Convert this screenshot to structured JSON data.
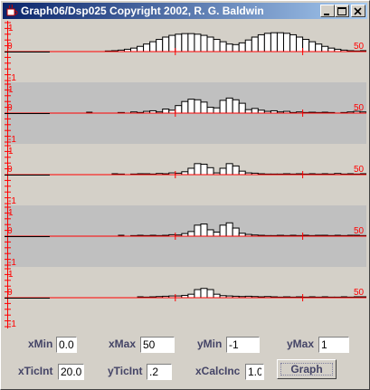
{
  "window": {
    "title": "Graph06/Dsp025 Copyright 2002, R. G. Baldwin"
  },
  "colors": {
    "axis": "#ff0000",
    "shade": "#c0c0c0",
    "bar_fill": "#ffffff",
    "bar_stroke": "#000000"
  },
  "plots": [
    {
      "name": "plot-1",
      "shaded": false,
      "label_max": "1",
      "label_zero": "0",
      "label_min": "-1",
      "label_x": "50",
      "values": [
        0,
        0,
        0,
        0,
        0,
        0,
        0,
        0,
        0,
        0.02,
        0.03,
        0.05,
        0.08,
        0.12,
        0.18,
        0.26,
        0.34,
        0.42,
        0.5,
        0.56,
        0.6,
        0.62,
        0.62,
        0.6,
        0.56,
        0.5,
        0.42,
        0.34,
        0.26,
        0.24,
        0.3,
        0.4,
        0.5,
        0.58,
        0.63,
        0.65,
        0.65,
        0.63,
        0.58,
        0.5,
        0.42,
        0.34,
        0.26,
        0.18,
        0.12,
        0.08,
        0.05,
        0.03,
        0.02,
        0.01
      ]
    },
    {
      "name": "plot-2",
      "shaded": true,
      "label_max": "1",
      "label_zero": "0",
      "label_min": "-1",
      "label_x": "50",
      "values": [
        0,
        0,
        0,
        0,
        0,
        0,
        0.01,
        0,
        0,
        0,
        0,
        0.02,
        0,
        0.04,
        0.02,
        0.06,
        0.08,
        0.04,
        0.14,
        0.1,
        0.26,
        0.4,
        0.48,
        0.46,
        0.38,
        0.2,
        0.18,
        0.44,
        0.52,
        0.46,
        0.34,
        0.12,
        0.16,
        0.1,
        0.06,
        0.08,
        0.04,
        0.06,
        0.02,
        0.04,
        0.02,
        0.03,
        0.02,
        0.01,
        0.02,
        0,
        0.02,
        0.04,
        0.06,
        0.04
      ]
    },
    {
      "name": "plot-3",
      "shaded": false,
      "label_max": "1",
      "label_zero": "0",
      "label_min": "-1",
      "label_x": "50",
      "values": [
        0,
        0,
        0,
        0,
        0,
        0,
        0,
        0,
        0,
        0,
        0.01,
        0.02,
        0,
        0.02,
        0.01,
        0.03,
        0.02,
        0.04,
        0.03,
        0.06,
        0.05,
        0.1,
        0.22,
        0.38,
        0.36,
        0.24,
        0.06,
        0.22,
        0.38,
        0.3,
        0.12,
        0.06,
        0.05,
        0.03,
        0.02,
        0.02,
        0.02,
        0.03,
        0.02,
        0.03,
        0.02,
        0.01,
        0.02,
        0.01,
        0.02,
        0.04,
        0.02,
        0.01,
        0.02,
        0.01
      ]
    },
    {
      "name": "plot-4",
      "shaded": true,
      "label_max": "1",
      "label_zero": "0",
      "label_min": "-1",
      "label_x": "50",
      "values": [
        0,
        0,
        0,
        0,
        0,
        0,
        0,
        0,
        0,
        0,
        0,
        0.01,
        0,
        0.02,
        0.01,
        0.02,
        0.01,
        0.02,
        0.03,
        0.05,
        0.04,
        0.09,
        0.16,
        0.38,
        0.42,
        0.22,
        0.14,
        0.38,
        0.46,
        0.28,
        0.1,
        0.06,
        0.04,
        0.03,
        0.02,
        0.02,
        0.03,
        0.02,
        0.01,
        0.02,
        0.01,
        0.02,
        0.03,
        0.01,
        0.02,
        0.01,
        0.02,
        0.01,
        0.01,
        0.02
      ]
    },
    {
      "name": "plot-5",
      "shaded": false,
      "label_max": "1",
      "label_zero": "0",
      "label_min": "-1",
      "label_x": "50",
      "values": [
        0,
        0,
        0,
        0,
        0,
        0,
        0,
        0,
        0,
        0,
        0,
        0,
        0,
        0,
        0.01,
        0.02,
        0.03,
        0.04,
        0.05,
        0.06,
        0.06,
        0.08,
        0.12,
        0.28,
        0.32,
        0.28,
        0.12,
        0.07,
        0.06,
        0.05,
        0.04,
        0.05,
        0.04,
        0.03,
        0.04,
        0.03,
        0.02,
        0.03,
        0.02,
        0.03,
        0.02,
        0.01,
        0.02,
        0.01,
        0.02,
        0.02,
        0.01,
        0.02,
        0.01,
        0.01
      ]
    }
  ],
  "controls": {
    "xmin": {
      "label": "xMin",
      "value": "0.0"
    },
    "xmax": {
      "label": "xMax",
      "value": "50"
    },
    "ymin": {
      "label": "yMin",
      "value": "-1"
    },
    "ymax": {
      "label": "yMax",
      "value": "1"
    },
    "xticint": {
      "label": "xTicInt",
      "value": "20.0"
    },
    "yticint": {
      "label": "yTicInt",
      "value": ".2"
    },
    "xcalcinc": {
      "label": "xCalcInc",
      "value": "1.0"
    },
    "graph_button": "Graph"
  }
}
